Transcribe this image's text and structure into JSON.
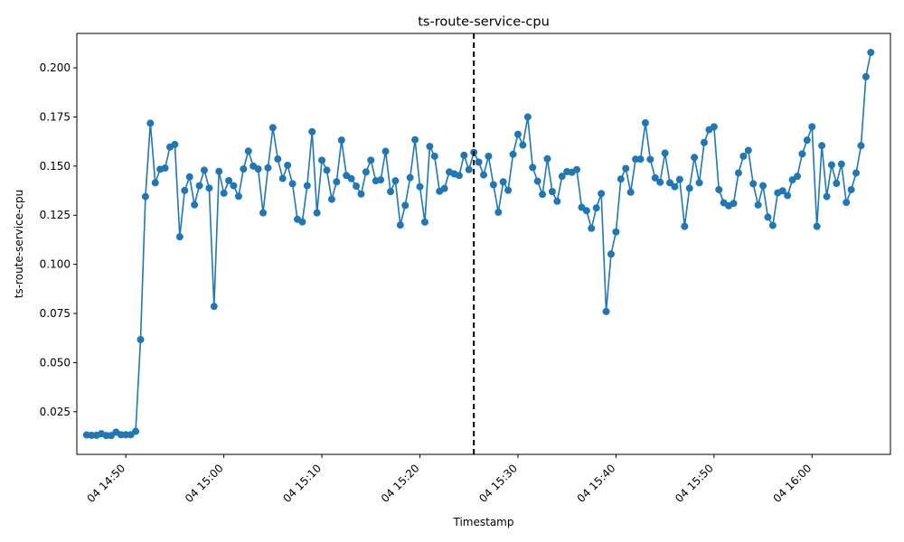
{
  "chart_data": {
    "type": "line",
    "title": "ts-route-service-cpu",
    "xlabel": "Timestamp",
    "ylabel": "ts-route-service-cpu",
    "x_start": "04 14:46",
    "x_step_minutes": 0.5,
    "xlim": [
      "04 14:45:00",
      "04 16:08:00"
    ],
    "ylim": [
      0.0033,
      0.2175
    ],
    "xticks": [
      {
        "value": "04 14:50",
        "label": "04 14:50"
      },
      {
        "value": "04 15:00",
        "label": "04 15:00"
      },
      {
        "value": "04 15:10",
        "label": "04 15:10"
      },
      {
        "value": "04 15:20",
        "label": "04 15:20"
      },
      {
        "value": "04 15:30",
        "label": "04 15:30"
      },
      {
        "value": "04 15:40",
        "label": "04 15:40"
      },
      {
        "value": "04 15:50",
        "label": "04 15:50"
      },
      {
        "value": "04 16:00",
        "label": "04 16:00"
      }
    ],
    "yticks": [
      {
        "value": 0.025,
        "label": "0.025"
      },
      {
        "value": 0.05,
        "label": "0.050"
      },
      {
        "value": 0.075,
        "label": "0.075"
      },
      {
        "value": 0.1,
        "label": "0.100"
      },
      {
        "value": 0.125,
        "label": "0.125"
      },
      {
        "value": 0.15,
        "label": "0.150"
      },
      {
        "value": 0.175,
        "label": "0.175"
      },
      {
        "value": 0.2,
        "label": "0.200"
      }
    ],
    "vline": {
      "x": "04 15:25:30",
      "style": "dashed",
      "color": "#000000"
    },
    "grid": false,
    "series": [
      {
        "color": "#1f77b4",
        "values": [
          0.0132,
          0.013,
          0.013,
          0.0138,
          0.0129,
          0.0129,
          0.0146,
          0.0133,
          0.0133,
          0.0133,
          0.015,
          0.0617,
          0.1345,
          0.1718,
          0.1415,
          0.1484,
          0.149,
          0.1597,
          0.161,
          0.114,
          0.1376,
          0.1445,
          0.1303,
          0.14,
          0.1479,
          0.1388,
          0.0786,
          0.1473,
          0.1362,
          0.1426,
          0.14,
          0.1346,
          0.1485,
          0.1576,
          0.15,
          0.1485,
          0.1262,
          0.1491,
          0.1695,
          0.1536,
          0.1437,
          0.1504,
          0.141,
          0.1229,
          0.1216,
          0.14,
          0.1675,
          0.1262,
          0.153,
          0.1479,
          0.1331,
          0.142,
          0.1632,
          0.1452,
          0.1436,
          0.1398,
          0.1358,
          0.147,
          0.153,
          0.1425,
          0.143,
          0.1575,
          0.137,
          0.1425,
          0.12,
          0.13,
          0.1441,
          0.1634,
          0.1395,
          0.1215,
          0.16,
          0.155,
          0.1372,
          0.1386,
          0.147,
          0.146,
          0.1452,
          0.1555,
          0.1482,
          0.157,
          0.152,
          0.1455,
          0.155,
          0.1405,
          0.1265,
          0.142,
          0.1377,
          0.156,
          0.1662,
          0.1607,
          0.175,
          0.1493,
          0.1423,
          0.1356,
          0.1537,
          0.137,
          0.1321,
          0.1448,
          0.1472,
          0.1468,
          0.1482,
          0.129,
          0.1273,
          0.1183,
          0.1287,
          0.136,
          0.076,
          0.1052,
          0.1165,
          0.1434,
          0.1488,
          0.1367,
          0.1535,
          0.1535,
          0.172,
          0.1534,
          0.144,
          0.1418,
          0.1566,
          0.1415,
          0.1395,
          0.1432,
          0.1193,
          0.1387,
          0.1544,
          0.1415,
          0.162,
          0.1685,
          0.17,
          0.138,
          0.1313,
          0.1298,
          0.131,
          0.1465,
          0.155,
          0.158,
          0.141,
          0.1302,
          0.14,
          0.124,
          0.1198,
          0.1364,
          0.1374,
          0.135,
          0.143,
          0.1448,
          0.1562,
          0.1632,
          0.17,
          0.1193,
          0.1604,
          0.1345,
          0.1506,
          0.1412,
          0.151,
          0.1315,
          0.138,
          0.1465,
          0.1604,
          0.1955,
          0.2078
        ]
      }
    ]
  }
}
